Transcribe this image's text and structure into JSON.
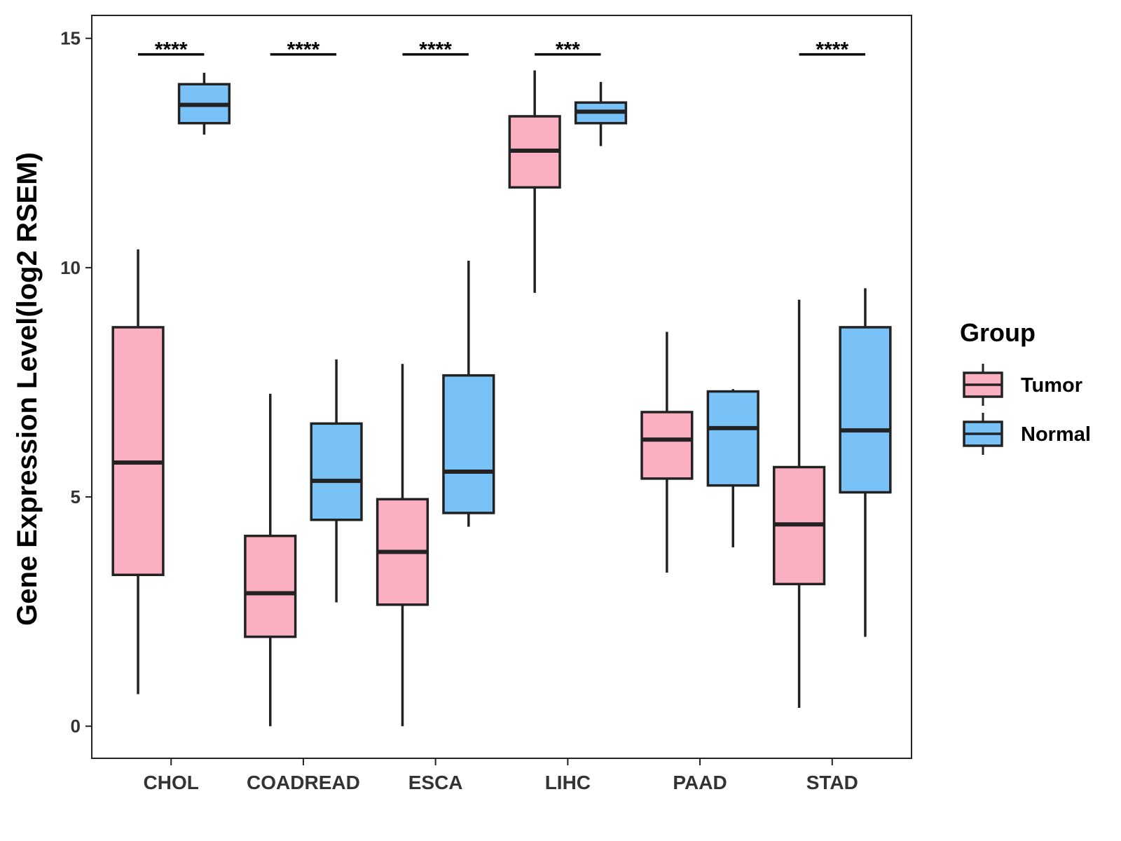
{
  "chart_data": {
    "type": "boxplot",
    "title": "",
    "xlabel": "",
    "ylabel": "Gene Expression Level(log2 RSEM)",
    "ylim": [
      -0.7,
      15.5
    ],
    "yticks": [
      0,
      5,
      10,
      15
    ],
    "categories": [
      "CHOL",
      "COADREAD",
      "ESCA",
      "LIHC",
      "PAAD",
      "STAD"
    ],
    "legend": {
      "title": "Group",
      "position": "right",
      "entries": [
        {
          "name": "Tumor",
          "color": "#FBB0C1"
        },
        {
          "name": "Normal",
          "color": "#79C2F8"
        }
      ]
    },
    "series": [
      {
        "name": "Tumor",
        "color": "#FBB0C1",
        "boxes": [
          {
            "category": "CHOL",
            "min": 0.7,
            "q1": 3.3,
            "median": 5.75,
            "q3": 8.7,
            "max": 10.4
          },
          {
            "category": "COADREAD",
            "min": 0.0,
            "q1": 1.95,
            "median": 2.9,
            "q3": 4.15,
            "max": 7.25
          },
          {
            "category": "ESCA",
            "min": 0.0,
            "q1": 2.65,
            "median": 3.8,
            "q3": 4.95,
            "max": 7.9
          },
          {
            "category": "LIHC",
            "min": 9.45,
            "q1": 11.75,
            "median": 12.55,
            "q3": 13.3,
            "max": 14.3
          },
          {
            "category": "PAAD",
            "min": 3.35,
            "q1": 5.4,
            "median": 6.25,
            "q3": 6.85,
            "max": 8.6
          },
          {
            "category": "STAD",
            "min": 0.4,
            "q1": 3.1,
            "median": 4.4,
            "q3": 5.65,
            "max": 9.3
          }
        ]
      },
      {
        "name": "Normal",
        "color": "#79C2F8",
        "boxes": [
          {
            "category": "CHOL",
            "min": 12.9,
            "q1": 13.15,
            "median": 13.55,
            "q3": 14.0,
            "max": 14.25
          },
          {
            "category": "COADREAD",
            "min": 2.7,
            "q1": 4.5,
            "median": 5.35,
            "q3": 6.6,
            "max": 8.0
          },
          {
            "category": "ESCA",
            "min": 4.35,
            "q1": 4.65,
            "median": 5.55,
            "q3": 7.65,
            "max": 10.15
          },
          {
            "category": "LIHC",
            "min": 12.65,
            "q1": 13.15,
            "median": 13.4,
            "q3": 13.6,
            "max": 14.05
          },
          {
            "category": "PAAD",
            "min": 3.9,
            "q1": 5.25,
            "median": 6.5,
            "q3": 7.3,
            "max": 7.35
          },
          {
            "category": "STAD",
            "min": 1.95,
            "q1": 5.1,
            "median": 6.45,
            "q3": 8.7,
            "max": 9.55
          }
        ]
      }
    ],
    "significance": [
      {
        "category": "CHOL",
        "label": "****",
        "y": 14.65
      },
      {
        "category": "COADREAD",
        "label": "****",
        "y": 14.65
      },
      {
        "category": "ESCA",
        "label": "****",
        "y": 14.65
      },
      {
        "category": "LIHC",
        "label": "***",
        "y": 14.65
      },
      {
        "category": "STAD",
        "label": "****",
        "y": 14.65
      }
    ]
  }
}
